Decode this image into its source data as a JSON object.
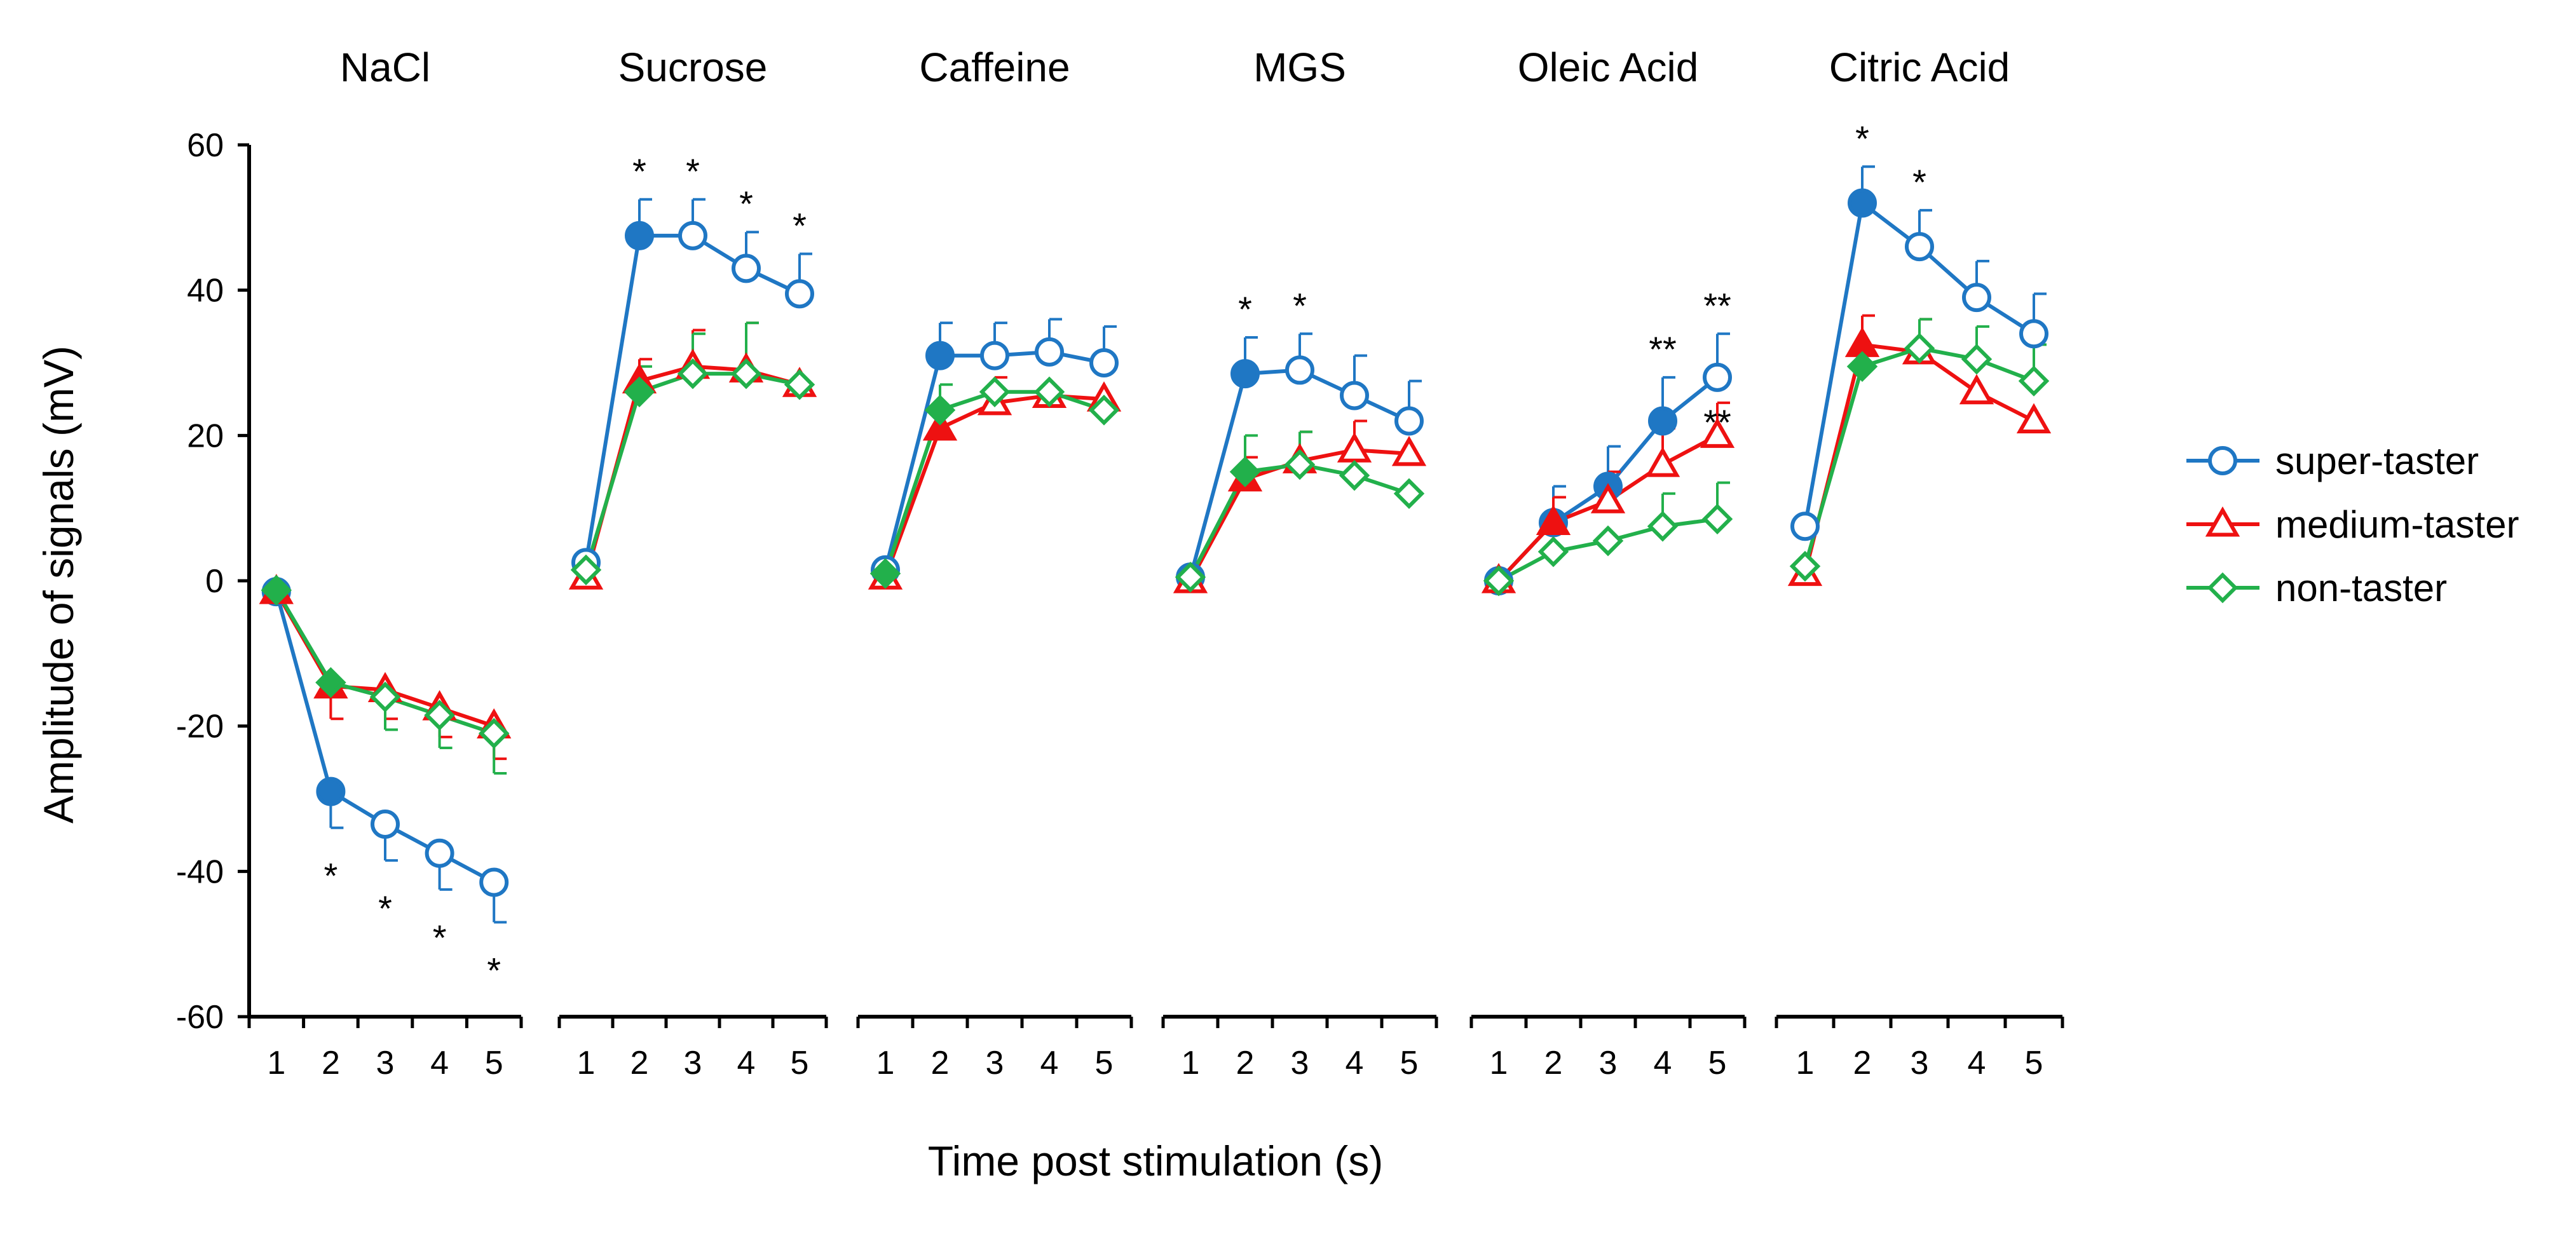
{
  "chart_data": {
    "type": "line",
    "ylabel": "Amplitude of signals (mV)",
    "xlabel": "Time post stimulation (s)",
    "ylim": [
      -60,
      60
    ],
    "y_ticks": [
      "60",
      "40",
      "20",
      "0",
      "-20",
      "-40",
      "-60"
    ],
    "x": [
      "1",
      "2",
      "3",
      "4",
      "5"
    ],
    "legend": {
      "placement": "right",
      "entries": [
        {
          "name": "super-taster",
          "color": "#1f77c4",
          "marker": "circle"
        },
        {
          "name": "medium-taster",
          "color": "#ee1111",
          "marker": "triangle"
        },
        {
          "name": "non-taster",
          "color": "#22b04b",
          "marker": "diamond"
        }
      ]
    },
    "panels": [
      {
        "title": "NaCl",
        "series": [
          {
            "name": "super-taster",
            "values": [
              -1.5,
              -29,
              -33.5,
              -37.5,
              -41.5
            ],
            "errors": [
              0,
              5,
              5,
              5,
              5.5
            ],
            "filled": [
              true,
              true,
              false,
              false,
              false
            ]
          },
          {
            "name": "medium-taster",
            "values": [
              -1.5,
              -14.5,
              -15,
              -17.5,
              -20
            ],
            "errors": [
              0,
              4.5,
              4,
              4,
              4.5
            ],
            "filled": [
              true,
              true,
              false,
              false,
              false
            ]
          },
          {
            "name": "non-taster",
            "values": [
              -1.3,
              -14,
              -16,
              -18.5,
              -21
            ],
            "errors": [
              0,
              0,
              4.5,
              4.5,
              5.5
            ],
            "filled": [
              true,
              true,
              false,
              false,
              false
            ]
          }
        ],
        "annotations": [
          {
            "x": 2,
            "text": "*",
            "pos": "below"
          },
          {
            "x": 3,
            "text": "*",
            "pos": "below"
          },
          {
            "x": 4,
            "text": "*",
            "pos": "below"
          },
          {
            "x": 5,
            "text": "*",
            "pos": "below"
          }
        ]
      },
      {
        "title": "Sucrose",
        "series": [
          {
            "name": "super-taster",
            "values": [
              2.5,
              47.5,
              47.5,
              43,
              39.5
            ],
            "errors": [
              0,
              5,
              5,
              5,
              5.5
            ],
            "filled": [
              false,
              true,
              false,
              false,
              false
            ]
          },
          {
            "name": "medium-taster",
            "values": [
              0.5,
              27.5,
              29.5,
              29,
              27
            ],
            "errors": [
              0,
              3,
              5,
              6.5,
              0
            ],
            "filled": [
              false,
              true,
              false,
              false,
              false
            ]
          },
          {
            "name": "non-taster",
            "values": [
              1.5,
              26,
              28.5,
              28.5,
              27
            ],
            "errors": [
              0,
              3.5,
              5.5,
              7,
              0
            ],
            "filled": [
              false,
              true,
              false,
              false,
              false
            ]
          }
        ],
        "annotations": [
          {
            "x": 2,
            "text": "*",
            "pos": "above"
          },
          {
            "x": 3,
            "text": "*",
            "pos": "above"
          },
          {
            "x": 4,
            "text": "*",
            "pos": "above"
          },
          {
            "x": 5,
            "text": "*",
            "pos": "above"
          }
        ]
      },
      {
        "title": "Caffeine",
        "series": [
          {
            "name": "super-taster",
            "values": [
              1.5,
              31,
              31,
              31.5,
              30
            ],
            "errors": [
              0,
              4.5,
              4.5,
              4.5,
              5
            ],
            "filled": [
              false,
              true,
              false,
              false,
              false
            ]
          },
          {
            "name": "medium-taster",
            "values": [
              0.5,
              21,
              24.5,
              25.5,
              25
            ],
            "errors": [
              0,
              3,
              3.5,
              0,
              0
            ],
            "filled": [
              false,
              true,
              false,
              false,
              false
            ]
          },
          {
            "name": "non-taster",
            "values": [
              1,
              23.5,
              26,
              26,
              23.5
            ],
            "errors": [
              0,
              3.5,
              0,
              0,
              0
            ],
            "filled": [
              true,
              true,
              false,
              false,
              false
            ]
          }
        ],
        "annotations": []
      },
      {
        "title": "MGS",
        "series": [
          {
            "name": "super-taster",
            "values": [
              0.5,
              28.5,
              29,
              25.5,
              22
            ],
            "errors": [
              0,
              5,
              5,
              5.5,
              5.5
            ],
            "filled": [
              false,
              true,
              false,
              false,
              false
            ]
          },
          {
            "name": "medium-taster",
            "values": [
              0,
              14,
              16.5,
              18,
              17.5
            ],
            "errors": [
              0,
              3,
              4,
              4,
              0
            ],
            "filled": [
              false,
              true,
              false,
              false,
              false
            ]
          },
          {
            "name": "non-taster",
            "values": [
              0.5,
              15,
              16,
              14.5,
              12
            ],
            "errors": [
              0,
              5,
              4.5,
              0,
              0
            ],
            "filled": [
              false,
              true,
              false,
              false,
              false
            ]
          }
        ],
        "annotations": [
          {
            "x": 2,
            "text": "*",
            "pos": "above"
          },
          {
            "x": 3,
            "text": "*",
            "pos": "above"
          }
        ]
      },
      {
        "title": "Oleic Acid",
        "series": [
          {
            "name": "super-taster",
            "values": [
              0,
              8,
              13,
              22,
              28
            ],
            "errors": [
              0,
              5,
              5.5,
              6,
              6
            ],
            "filled": [
              false,
              true,
              true,
              true,
              false
            ]
          },
          {
            "name": "medium-taster",
            "values": [
              0,
              8,
              11,
              16,
              20
            ],
            "errors": [
              0,
              3.5,
              4,
              5,
              4.5
            ],
            "filled": [
              false,
              true,
              false,
              false,
              false
            ]
          },
          {
            "name": "non-taster",
            "values": [
              0,
              4,
              5.5,
              7.5,
              8.5
            ],
            "errors": [
              0,
              0,
              0,
              4.5,
              5
            ],
            "filled": [
              false,
              false,
              false,
              false,
              false
            ]
          }
        ],
        "annotations": [
          {
            "x": 4,
            "text": "**",
            "pos": "above"
          },
          {
            "x": 5,
            "text": "**",
            "pos": "above"
          },
          {
            "x": 5,
            "text": "**",
            "pos": "mid"
          }
        ]
      },
      {
        "title": "Citric Acid",
        "series": [
          {
            "name": "super-taster",
            "values": [
              7.5,
              52,
              46,
              39,
              34
            ],
            "errors": [
              0,
              5,
              5,
              5,
              5.5
            ],
            "filled": [
              false,
              true,
              false,
              false,
              false
            ]
          },
          {
            "name": "medium-taster",
            "values": [
              1,
              32.5,
              31.5,
              26,
              22
            ],
            "errors": [
              0,
              4,
              4.5,
              0,
              0
            ],
            "filled": [
              false,
              true,
              false,
              false,
              false
            ]
          },
          {
            "name": "non-taster",
            "values": [
              2,
              29.5,
              32,
              30.5,
              27.5
            ],
            "errors": [
              0,
              0,
              4,
              4.5,
              5
            ],
            "filled": [
              false,
              true,
              false,
              false,
              false
            ]
          }
        ],
        "annotations": [
          {
            "x": 2,
            "text": "*",
            "pos": "above"
          },
          {
            "x": 3,
            "text": "*",
            "pos": "above"
          }
        ]
      }
    ]
  }
}
